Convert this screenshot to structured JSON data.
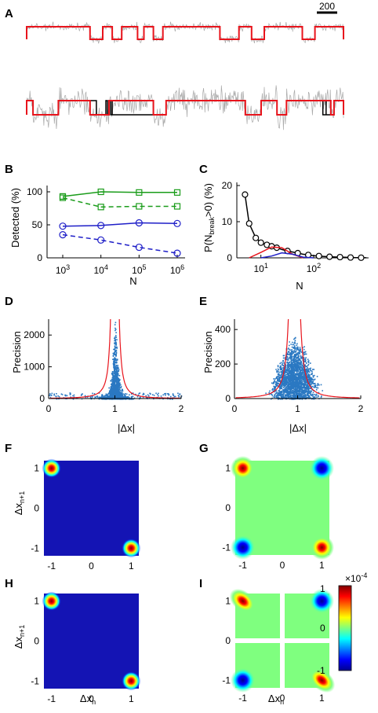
{
  "panels": {
    "A": {
      "label": "A",
      "scalebar": "200"
    },
    "B": {
      "label": "B"
    },
    "C": {
      "label": "C"
    },
    "D": {
      "label": "D"
    },
    "E": {
      "label": "E"
    },
    "F": {
      "label": "F"
    },
    "G": {
      "label": "G"
    },
    "H": {
      "label": "H"
    },
    "I": {
      "label": "I"
    }
  },
  "colors": {
    "trace_gray": "#a9a9a9",
    "fit_red": "#e8141c",
    "fit_black": "#000000",
    "green": "#1a9c1a",
    "blue": "#1f1fc8",
    "scatter": "#2a78c2",
    "curve": "#e8141c"
  },
  "chart_data": [
    {
      "id": "B",
      "type": "line",
      "xlabel": "N",
      "ylabel": "Detected (%)",
      "xscale": "log",
      "xlim": [
        1000,
        1000000
      ],
      "ylim": [
        0,
        100
      ],
      "xticklabels": [
        {
          "base": "10",
          "exp": "3"
        },
        {
          "base": "10",
          "exp": "4"
        },
        {
          "base": "10",
          "exp": "5"
        },
        {
          "base": "10",
          "exp": "6"
        }
      ],
      "yticklabels": [
        "0",
        "50",
        "100"
      ],
      "x": [
        1000,
        10000,
        100000,
        1000000
      ],
      "series": [
        {
          "color": "green",
          "style": "solid",
          "marker": "square",
          "values": [
            93,
            100,
            99,
            99
          ]
        },
        {
          "color": "green",
          "style": "dashed",
          "marker": "square",
          "values": [
            91,
            77,
            78,
            78
          ]
        },
        {
          "color": "blue",
          "style": "solid",
          "marker": "circle",
          "values": [
            48,
            49,
            53,
            52
          ]
        },
        {
          "color": "blue",
          "style": "dashed",
          "marker": "circle",
          "values": [
            35,
            27,
            16,
            7
          ]
        }
      ]
    },
    {
      "id": "C",
      "type": "line",
      "xlabel": "N",
      "ylabel_parts": [
        "P(N",
        "break",
        ">0) (%)"
      ],
      "xscale": "log",
      "ylim": [
        0,
        20
      ],
      "xticklabels": [
        {
          "base": "10",
          "exp": "1"
        },
        {
          "base": "10",
          "exp": "2"
        }
      ],
      "yticklabels": [
        "0",
        "10",
        "20"
      ],
      "series": [
        {
          "color": "black",
          "marker": "circle",
          "x": [
            5,
            6,
            8,
            10,
            13,
            16,
            20,
            25,
            32,
            40,
            50,
            63,
            79,
            100,
            126,
            158,
            200,
            251,
            316,
            398,
            501,
            631,
            794,
            1000
          ],
          "values": [
            17.5,
            9.5,
            5.5,
            4.2,
            3.6,
            3.2,
            2.8,
            2.3,
            1.9,
            1.6,
            1.3,
            1.0,
            0.8,
            0.6,
            0.5,
            0.4,
            0.3,
            0.25,
            0.2,
            0.15,
            0.1,
            0.07,
            0.04,
            0.02
          ]
        },
        {
          "color": "red",
          "marker": "none",
          "x": [
            6,
            10,
            16,
            25,
            40,
            63
          ],
          "values": [
            0,
            1.5,
            3.0,
            2.8,
            1.0,
            0
          ]
        },
        {
          "color": "blue",
          "marker": "none",
          "x": [
            10,
            16,
            25,
            40,
            63,
            100
          ],
          "values": [
            0,
            0.5,
            1.4,
            1.0,
            0.2,
            0
          ]
        }
      ]
    },
    {
      "id": "D",
      "type": "scatter",
      "xlabel": "|Δx|",
      "ylabel": "Precision",
      "xlim": [
        0,
        2
      ],
      "ylim": [
        0,
        2500
      ],
      "xticklabels": [
        "0",
        "1",
        "2"
      ],
      "yticklabels": [
        "0",
        "1000",
        "2000"
      ],
      "note": "dense scatter peaked at |Δx|≈1 with red bounding curve"
    },
    {
      "id": "E",
      "type": "scatter",
      "xlabel": "|Δx|",
      "ylabel": "Precision",
      "xlim": [
        0,
        2
      ],
      "ylim": [
        0,
        450
      ],
      "xticklabels": [
        "0",
        "1",
        "2"
      ],
      "yticklabels": [
        "0",
        "200",
        "400"
      ],
      "note": "broad scatter centred near |Δx|≈0.9 with red bounding curve"
    },
    {
      "id": "F",
      "type": "heatmap",
      "ylabel_base": "Δx",
      "ylabel_sub": "n+1",
      "xticklabels": [
        "-1",
        "0",
        "1"
      ],
      "yticklabels": [
        "1",
        "0",
        "-1"
      ],
      "peaks": [
        {
          "x": -1,
          "y": 1,
          "sign": 1
        },
        {
          "x": 1,
          "y": -1,
          "sign": 1
        }
      ]
    },
    {
      "id": "G",
      "type": "heatmap",
      "xticklabels": [
        "-1",
        "0",
        "1"
      ],
      "yticklabels": [
        "1",
        "0",
        "-1"
      ],
      "peaks": [
        {
          "x": -1,
          "y": 1,
          "sign": 1
        },
        {
          "x": 1,
          "y": 1,
          "sign": -1
        },
        {
          "x": -1,
          "y": -1,
          "sign": -1
        },
        {
          "x": 1,
          "y": -1,
          "sign": 1
        }
      ]
    },
    {
      "id": "H",
      "type": "heatmap",
      "xlabel_base": "Δx",
      "xlabel_sub": "n",
      "ylabel_base": "Δx",
      "ylabel_sub": "n+1",
      "xticklabels": [
        "-1",
        "0",
        "1"
      ],
      "yticklabels": [
        "1",
        "0",
        "-1"
      ],
      "peaks": [
        {
          "x": -1,
          "y": 1,
          "sign": 1
        },
        {
          "x": 1,
          "y": -1,
          "sign": 1
        }
      ]
    },
    {
      "id": "I",
      "type": "heatmap",
      "xlabel_base": "Δx",
      "xlabel_sub": "n",
      "xticklabels": [
        "-1",
        "0",
        "1"
      ],
      "yticklabels": [
        "1",
        "0",
        "-1"
      ],
      "peaks": [
        {
          "x": -1,
          "y": 1,
          "sign": 1
        },
        {
          "x": 1,
          "y": 1,
          "sign": -1
        },
        {
          "x": -1,
          "y": -1,
          "sign": -1
        },
        {
          "x": 1,
          "y": -1,
          "sign": 1
        }
      ],
      "colorbar": {
        "ticklabels": [
          "1",
          "0",
          "-1"
        ],
        "multiplier_base": "×10",
        "multiplier_exp": "-4",
        "range": [
          -1,
          1
        ]
      }
    }
  ]
}
